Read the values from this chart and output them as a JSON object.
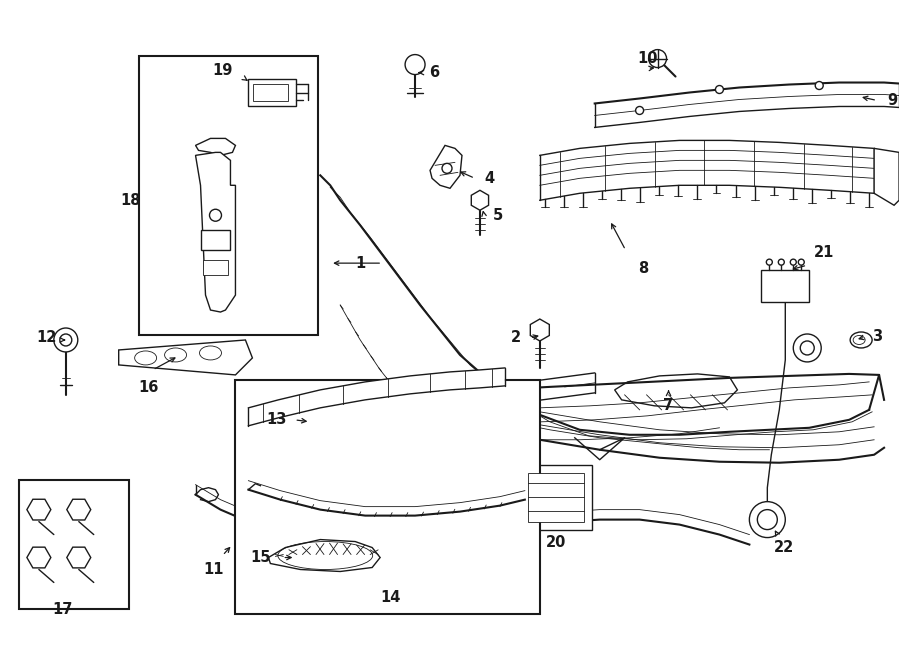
{
  "background_color": "#ffffff",
  "line_color": "#1a1a1a",
  "fig_width": 9.0,
  "fig_height": 6.61,
  "dpi": 100,
  "label_fontsize": 10.5,
  "arrow_lw": 0.9
}
